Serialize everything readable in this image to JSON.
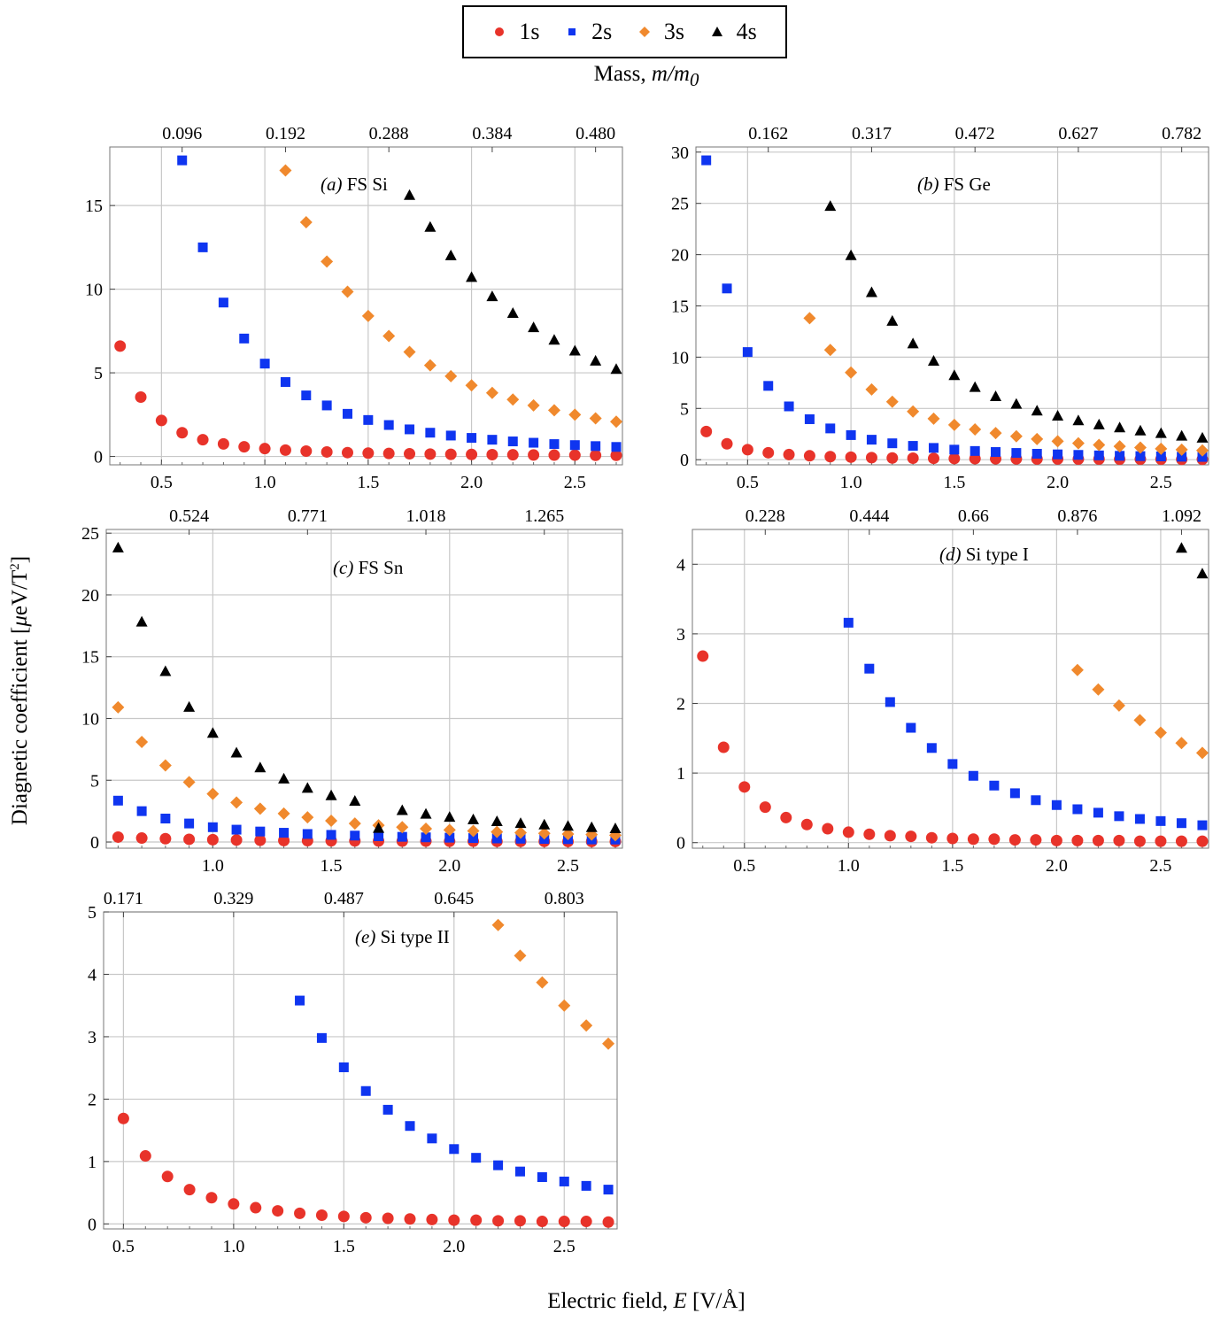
{
  "legend": {
    "items": [
      {
        "label": "1s",
        "color": "#e8332a",
        "marker": "circle"
      },
      {
        "label": "2s",
        "color": "#0f35f0",
        "marker": "square"
      },
      {
        "label": "3s",
        "color": "#f0892d",
        "marker": "diamond"
      },
      {
        "label": "4s",
        "color": "#000000",
        "marker": "triangle"
      }
    ]
  },
  "top_axis_title": {
    "prefix": "Mass, ",
    "math": "m/m",
    "sub": "0"
  },
  "y_axis_title": {
    "prefix": "Diagnetic coefficient [",
    "mu": "μ",
    "unit": "eV/T",
    "sup": "2",
    "suffix": "]"
  },
  "x_axis_title": {
    "prefix": "Electric field, ",
    "math": "E",
    "unit": " [V/Å]"
  },
  "chart_data": [
    {
      "type": "scatter",
      "label_tag": "(a)",
      "label_text": "FS Si",
      "xlim": [
        0.25,
        2.73
      ],
      "ylim": [
        -0.5,
        18.5
      ],
      "xticks": [
        0.5,
        1.0,
        1.5,
        2.0,
        2.5
      ],
      "xtick_labels": [
        "0.5",
        "1.0",
        "1.5",
        "2.0",
        "2.5"
      ],
      "yticks": [
        0,
        5,
        10,
        15
      ],
      "ytick_labels": [
        "0",
        "5",
        "10",
        "15"
      ],
      "top_ticks": [
        0.6,
        1.1,
        1.6,
        2.1,
        2.6
      ],
      "top_tick_labels": [
        "0.096",
        "0.192",
        "0.288",
        "0.384",
        "0.480"
      ],
      "series": [
        {
          "name": "1s",
          "x": [
            0.3,
            0.4,
            0.5,
            0.6,
            0.7,
            0.8,
            0.9,
            1.0,
            1.1,
            1.2,
            1.3,
            1.4,
            1.5,
            1.6,
            1.7,
            1.8,
            1.9,
            2.0,
            2.1,
            2.2,
            2.3,
            2.4,
            2.5,
            2.6,
            2.7
          ],
          "y": [
            6.6,
            3.55,
            2.15,
            1.42,
            1.0,
            0.75,
            0.58,
            0.47,
            0.38,
            0.32,
            0.27,
            0.23,
            0.2,
            0.18,
            0.16,
            0.14,
            0.13,
            0.12,
            0.11,
            0.1,
            0.09,
            0.08,
            0.08,
            0.07,
            0.07
          ]
        },
        {
          "name": "2s",
          "x": [
            0.6,
            0.7,
            0.8,
            0.9,
            1.0,
            1.1,
            1.2,
            1.3,
            1.4,
            1.5,
            1.6,
            1.7,
            1.8,
            1.9,
            2.0,
            2.1,
            2.2,
            2.3,
            2.4,
            2.5,
            2.6,
            2.7
          ],
          "y": [
            17.7,
            12.5,
            9.2,
            7.05,
            5.55,
            4.45,
            3.65,
            3.05,
            2.55,
            2.18,
            1.88,
            1.62,
            1.42,
            1.25,
            1.11,
            1.0,
            0.9,
            0.82,
            0.74,
            0.68,
            0.62,
            0.57
          ]
        },
        {
          "name": "3s",
          "x": [
            1.1,
            1.2,
            1.3,
            1.4,
            1.5,
            1.6,
            1.7,
            1.8,
            1.9,
            2.0,
            2.1,
            2.2,
            2.3,
            2.4,
            2.5,
            2.6,
            2.7
          ],
          "y": [
            17.1,
            14.0,
            11.65,
            9.85,
            8.4,
            7.2,
            6.25,
            5.45,
            4.8,
            4.25,
            3.8,
            3.4,
            3.05,
            2.76,
            2.5,
            2.28,
            2.08
          ]
        },
        {
          "name": "4s",
          "x": [
            1.7,
            1.8,
            1.9,
            2.0,
            2.1,
            2.2,
            2.3,
            2.4,
            2.5,
            2.6,
            2.7
          ],
          "y": [
            15.6,
            13.7,
            12.0,
            10.7,
            9.55,
            8.55,
            7.7,
            6.95,
            6.3,
            5.7,
            5.2
          ]
        }
      ]
    },
    {
      "type": "scatter",
      "label_tag": "(b)",
      "label_text": "FS Ge",
      "xlim": [
        0.25,
        2.73
      ],
      "ylim": [
        -0.5,
        30.5
      ],
      "xticks": [
        0.5,
        1.0,
        1.5,
        2.0,
        2.5
      ],
      "xtick_labels": [
        "0.5",
        "1.0",
        "1.5",
        "2.0",
        "2.5"
      ],
      "yticks": [
        0,
        5,
        10,
        15,
        20,
        25,
        30
      ],
      "ytick_labels": [
        "0",
        "5",
        "10",
        "15",
        "20",
        "25",
        "30"
      ],
      "top_ticks": [
        0.6,
        1.1,
        1.6,
        2.1,
        2.6
      ],
      "top_tick_labels": [
        "0.162",
        "0.317",
        "0.472",
        "0.627",
        "0.782"
      ],
      "series": [
        {
          "name": "1s",
          "x": [
            0.3,
            0.4,
            0.5,
            0.6,
            0.7,
            0.8,
            0.9,
            1.0,
            1.1,
            1.2,
            1.3,
            1.4,
            1.5,
            1.6,
            1.7,
            1.8,
            1.9,
            2.0,
            2.1,
            2.2,
            2.3,
            2.4,
            2.5,
            2.6,
            2.7
          ],
          "y": [
            2.75,
            1.55,
            0.98,
            0.68,
            0.5,
            0.38,
            0.3,
            0.25,
            0.2,
            0.17,
            0.15,
            0.13,
            0.11,
            0.1,
            0.09,
            0.08,
            0.07,
            0.07,
            0.06,
            0.06,
            0.05,
            0.05,
            0.05,
            0.04,
            0.04
          ]
        },
        {
          "name": "2s",
          "x": [
            0.3,
            0.4,
            0.5,
            0.6,
            0.7,
            0.8,
            0.9,
            1.0,
            1.1,
            1.2,
            1.3,
            1.4,
            1.5,
            1.6,
            1.7,
            1.8,
            1.9,
            2.0,
            2.1,
            2.2,
            2.3,
            2.4,
            2.5,
            2.6,
            2.7
          ],
          "y": [
            29.2,
            16.7,
            10.5,
            7.2,
            5.2,
            3.95,
            3.05,
            2.4,
            1.95,
            1.6,
            1.35,
            1.15,
            0.98,
            0.85,
            0.75,
            0.66,
            0.58,
            0.52,
            0.47,
            0.42,
            0.38,
            0.35,
            0.32,
            0.29,
            0.27
          ]
        },
        {
          "name": "3s",
          "x": [
            0.8,
            0.9,
            1.0,
            1.1,
            1.2,
            1.3,
            1.4,
            1.5,
            1.6,
            1.7,
            1.8,
            1.9,
            2.0,
            2.1,
            2.2,
            2.3,
            2.4,
            2.5,
            2.6,
            2.7
          ],
          "y": [
            13.8,
            10.7,
            8.5,
            6.85,
            5.65,
            4.7,
            4.0,
            3.4,
            2.95,
            2.6,
            2.28,
            2.02,
            1.8,
            1.6,
            1.44,
            1.3,
            1.18,
            1.07,
            0.98,
            0.9
          ]
        },
        {
          "name": "4s",
          "x": [
            0.9,
            1.0,
            1.1,
            1.2,
            1.3,
            1.4,
            1.5,
            1.6,
            1.7,
            1.8,
            1.9,
            2.0,
            2.1,
            2.2,
            2.3,
            2.4,
            2.5,
            2.6,
            2.7
          ],
          "y": [
            24.7,
            19.9,
            16.3,
            13.5,
            11.3,
            9.6,
            8.2,
            7.05,
            6.15,
            5.4,
            4.75,
            4.25,
            3.8,
            3.4,
            3.1,
            2.8,
            2.55,
            2.3,
            2.1
          ]
        }
      ]
    },
    {
      "type": "scatter",
      "label_tag": "(c)",
      "label_text": "FS Sn",
      "xlim": [
        0.55,
        2.73
      ],
      "ylim": [
        -0.5,
        25.3
      ],
      "xticks": [
        1.0,
        1.5,
        2.0,
        2.5
      ],
      "xtick_labels": [
        "1.0",
        "1.5",
        "2.0",
        "2.5"
      ],
      "yticks": [
        0,
        5,
        10,
        15,
        20,
        25
      ],
      "ytick_labels": [
        "0",
        "5",
        "10",
        "15",
        "20",
        "25"
      ],
      "top_ticks": [
        0.9,
        1.4,
        1.9,
        2.4
      ],
      "top_tick_labels": [
        "0.524",
        "0.771",
        "1.018",
        "1.265"
      ],
      "series": [
        {
          "name": "1s",
          "x": [
            0.6,
            0.7,
            0.8,
            0.9,
            1.0,
            1.1,
            1.2,
            1.3,
            1.4,
            1.5,
            1.6,
            1.7,
            1.8,
            1.9,
            2.0,
            2.1,
            2.2,
            2.3,
            2.4,
            2.5,
            2.6,
            2.7
          ],
          "y": [
            0.4,
            0.32,
            0.27,
            0.22,
            0.19,
            0.16,
            0.14,
            0.12,
            0.11,
            0.1,
            0.09,
            0.08,
            0.07,
            0.07,
            0.06,
            0.06,
            0.05,
            0.05,
            0.05,
            0.04,
            0.04,
            0.04
          ]
        },
        {
          "name": "2s",
          "x": [
            0.6,
            0.7,
            0.8,
            0.9,
            1.0,
            1.1,
            1.2,
            1.3,
            1.4,
            1.5,
            1.6,
            1.7,
            1.8,
            1.9,
            2.0,
            2.1,
            2.2,
            2.3,
            2.4,
            2.5,
            2.6,
            2.7
          ],
          "y": [
            3.35,
            2.5,
            1.9,
            1.5,
            1.2,
            1.0,
            0.85,
            0.75,
            0.65,
            0.58,
            0.52,
            0.47,
            0.42,
            0.38,
            0.35,
            0.32,
            0.29,
            0.27,
            0.25,
            0.23,
            0.21,
            0.2
          ]
        },
        {
          "name": "3s",
          "x": [
            0.6,
            0.7,
            0.8,
            0.9,
            1.0,
            1.1,
            1.2,
            1.3,
            1.4,
            1.5,
            1.6,
            1.7,
            1.8,
            1.9,
            2.0,
            2.1,
            2.2,
            2.3,
            2.4,
            2.5,
            2.6,
            2.7
          ],
          "y": [
            10.9,
            8.1,
            6.2,
            4.85,
            3.9,
            3.2,
            2.7,
            2.3,
            2.0,
            1.72,
            1.5,
            1.35,
            1.2,
            1.08,
            0.98,
            0.9,
            0.82,
            0.75,
            0.7,
            0.65,
            0.6,
            0.55
          ]
        },
        {
          "name": "4s",
          "x": [
            0.6,
            0.7,
            0.8,
            0.9,
            1.0,
            1.1,
            1.2,
            1.3,
            1.4,
            1.5,
            1.6,
            1.7,
            1.8,
            1.9,
            2.0,
            2.1,
            2.2,
            2.3,
            2.4,
            2.5,
            2.6,
            2.7
          ],
          "y": [
            23.8,
            17.8,
            13.8,
            10.9,
            8.8,
            7.2,
            6.0,
            5.1,
            4.35,
            3.75,
            3.3,
            1.1,
            2.55,
            2.25,
            2.0,
            1.8,
            1.65,
            1.5,
            1.38,
            1.27,
            1.17,
            1.08
          ]
        }
      ]
    },
    {
      "type": "scatter",
      "label_tag": "(d)",
      "label_text": "Si type I",
      "xlim": [
        0.25,
        2.73
      ],
      "ylim": [
        -0.08,
        4.5
      ],
      "xticks": [
        0.5,
        1.0,
        1.5,
        2.0,
        2.5
      ],
      "xtick_labels": [
        "0.5",
        "1.0",
        "1.5",
        "2.0",
        "2.5"
      ],
      "yticks": [
        0,
        1,
        2,
        3,
        4
      ],
      "ytick_labels": [
        "0",
        "1",
        "2",
        "3",
        "4"
      ],
      "top_ticks": [
        0.6,
        1.1,
        1.6,
        2.1,
        2.6
      ],
      "top_tick_labels": [
        "0.228",
        "0.444",
        "0.66",
        "0.876",
        "1.092"
      ],
      "series": [
        {
          "name": "1s",
          "x": [
            0.3,
            0.4,
            0.5,
            0.6,
            0.7,
            0.8,
            0.9,
            1.0,
            1.1,
            1.2,
            1.3,
            1.4,
            1.5,
            1.6,
            1.7,
            1.8,
            1.9,
            2.0,
            2.1,
            2.2,
            2.3,
            2.4,
            2.5,
            2.6,
            2.7
          ],
          "y": [
            2.68,
            1.37,
            0.8,
            0.51,
            0.36,
            0.26,
            0.2,
            0.15,
            0.12,
            0.1,
            0.09,
            0.07,
            0.06,
            0.05,
            0.05,
            0.04,
            0.04,
            0.03,
            0.03,
            0.03,
            0.03,
            0.02,
            0.02,
            0.02,
            0.02
          ]
        },
        {
          "name": "2s",
          "x": [
            1.0,
            1.1,
            1.2,
            1.3,
            1.4,
            1.5,
            1.6,
            1.7,
            1.8,
            1.9,
            2.0,
            2.1,
            2.2,
            2.3,
            2.4,
            2.5,
            2.6,
            2.7
          ],
          "y": [
            3.16,
            2.5,
            2.02,
            1.65,
            1.36,
            1.13,
            0.96,
            0.82,
            0.71,
            0.61,
            0.54,
            0.48,
            0.43,
            0.38,
            0.34,
            0.31,
            0.28,
            0.25
          ]
        },
        {
          "name": "3s",
          "x": [
            2.1,
            2.2,
            2.3,
            2.4,
            2.5,
            2.6,
            2.7
          ],
          "y": [
            2.48,
            2.2,
            1.97,
            1.76,
            1.58,
            1.43,
            1.29
          ]
        },
        {
          "name": "4s",
          "x": [
            2.6,
            2.7
          ],
          "y": [
            4.23,
            3.86
          ]
        }
      ]
    },
    {
      "type": "scatter",
      "label_tag": "(e)",
      "label_text": "Si type II",
      "xlim": [
        0.41,
        2.74
      ],
      "ylim": [
        -0.08,
        5.0
      ],
      "xticks": [
        0.5,
        1.0,
        1.5,
        2.0,
        2.5
      ],
      "xtick_labels": [
        "0.5",
        "1.0",
        "1.5",
        "2.0",
        "2.5"
      ],
      "yticks": [
        0,
        1,
        2,
        3,
        4,
        5
      ],
      "ytick_labels": [
        "0",
        "1",
        "2",
        "3",
        "4",
        "5"
      ],
      "top_ticks": [
        0.5,
        1.0,
        1.5,
        2.0,
        2.5
      ],
      "top_tick_labels": [
        "0.171",
        "0.329",
        "0.487",
        "0.645",
        "0.803"
      ],
      "series": [
        {
          "name": "1s",
          "x": [
            0.5,
            0.6,
            0.7,
            0.8,
            0.9,
            1.0,
            1.1,
            1.2,
            1.3,
            1.4,
            1.5,
            1.6,
            1.7,
            1.8,
            1.9,
            2.0,
            2.1,
            2.2,
            2.3,
            2.4,
            2.5,
            2.6,
            2.7
          ],
          "y": [
            1.69,
            1.09,
            0.76,
            0.55,
            0.42,
            0.32,
            0.26,
            0.21,
            0.17,
            0.14,
            0.12,
            0.1,
            0.09,
            0.08,
            0.07,
            0.06,
            0.06,
            0.05,
            0.05,
            0.04,
            0.04,
            0.04,
            0.03
          ]
        },
        {
          "name": "2s",
          "x": [
            1.3,
            1.4,
            1.5,
            1.6,
            1.7,
            1.8,
            1.9,
            2.0,
            2.1,
            2.2,
            2.3,
            2.4,
            2.5,
            2.6,
            2.7
          ],
          "y": [
            3.58,
            2.98,
            2.51,
            2.13,
            1.83,
            1.57,
            1.37,
            1.2,
            1.06,
            0.94,
            0.84,
            0.75,
            0.68,
            0.61,
            0.55
          ]
        },
        {
          "name": "3s",
          "x": [
            2.2,
            2.3,
            2.4,
            2.5,
            2.6,
            2.7
          ],
          "y": [
            4.79,
            4.3,
            3.87,
            3.5,
            3.18,
            2.89
          ]
        }
      ]
    }
  ]
}
